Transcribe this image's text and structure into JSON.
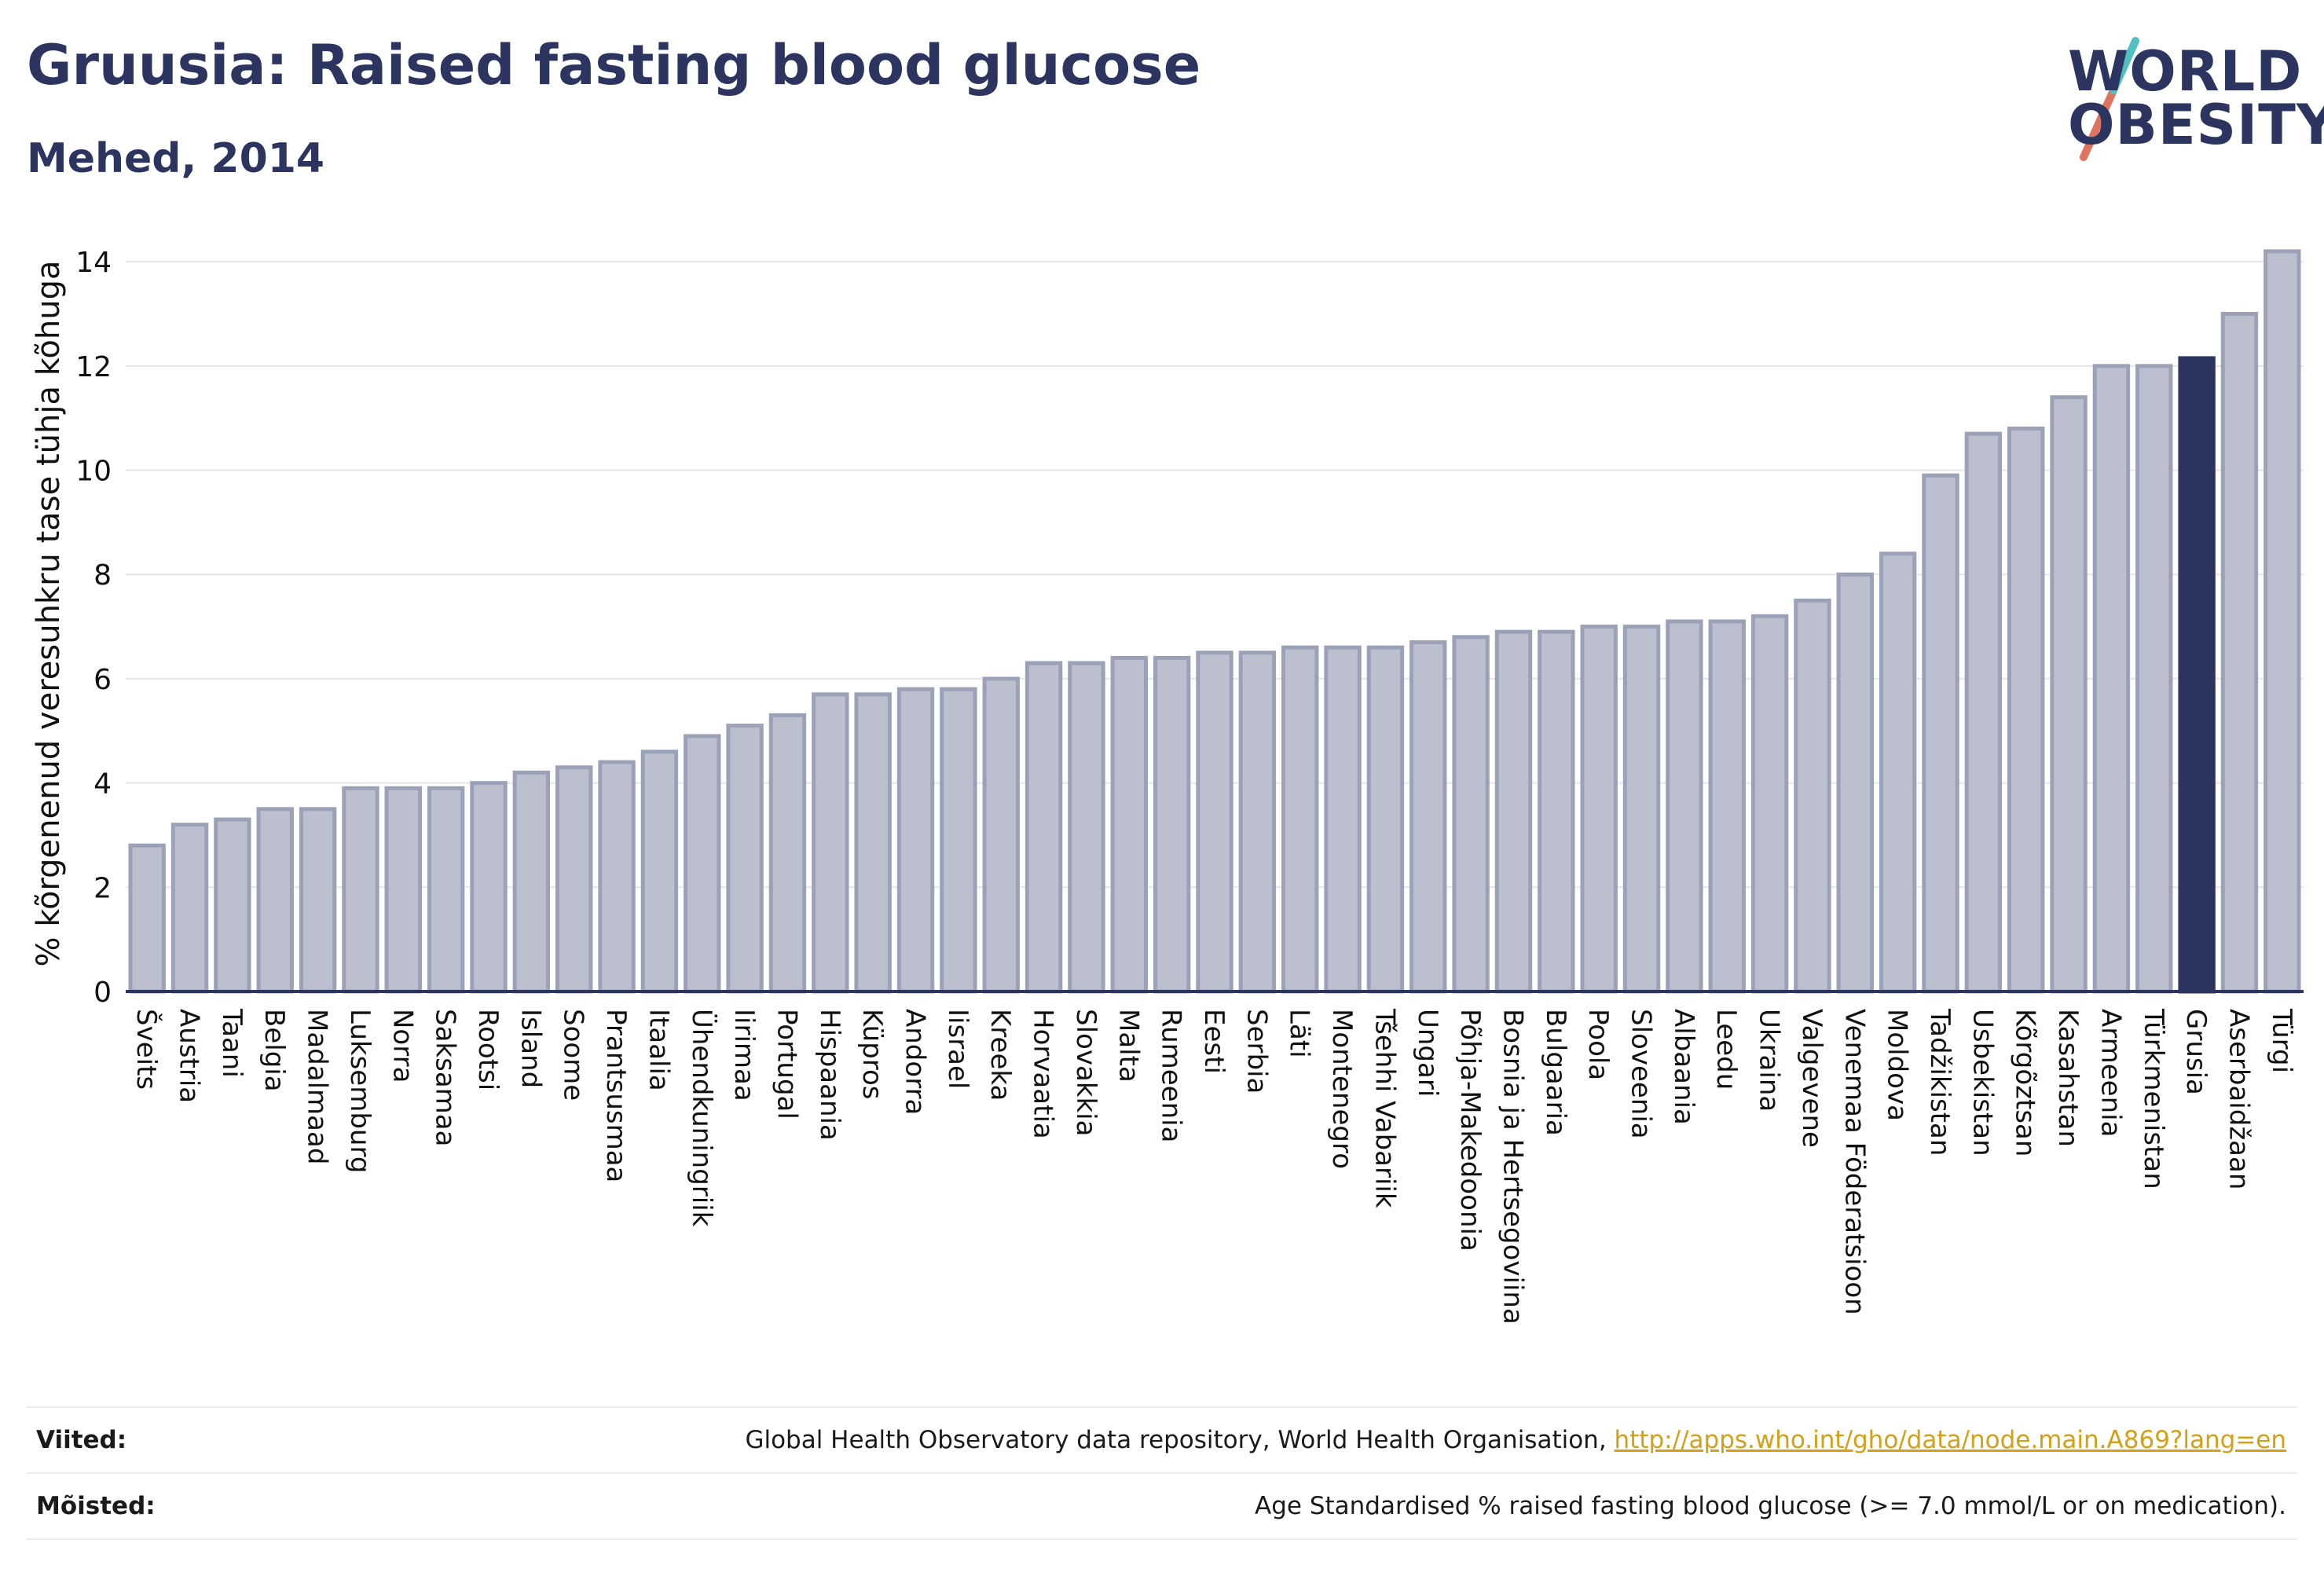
{
  "header": {
    "title": "Gruusia: Raised fasting blood glucose",
    "subtitle": "Mehed, 2014"
  },
  "logo": {
    "line1": "WORLD",
    "line2": "OBESITY",
    "text_color": "#2b3560",
    "slash_colors": [
      "#4fbfbf",
      "#e0735e"
    ]
  },
  "chart_data": {
    "type": "bar",
    "ylabel": "% kõrgenenud veresuhkru tase tühja kõhuga",
    "ylim": [
      0,
      14.5
    ],
    "yticks": [
      0,
      2,
      4,
      6,
      8,
      10,
      12,
      14
    ],
    "grid": true,
    "highlight": "Grusia",
    "colors": {
      "bar": "#bcc0ce",
      "bar_edge": "#9ba2b8",
      "highlight": "#2b3560",
      "axis": "#2b3560",
      "grid": "#e6e6e6"
    },
    "categories": [
      "Šveits",
      "Austria",
      "Taani",
      "Belgia",
      "Madalmaad",
      "Luksemburg",
      "Norra",
      "Saksamaa",
      "Rootsi",
      "Island",
      "Soome",
      "Prantsusmaa",
      "Itaalia",
      "Ühendkuningriik",
      "Iirimaa",
      "Portugal",
      "Hispaania",
      "Küpros",
      "Andorra",
      "Iisrael",
      "Kreeka",
      "Horvaatia",
      "Slovakkia",
      "Malta",
      "Rumeenia",
      "Eesti",
      "Serbia",
      "Läti",
      "Montenegro",
      "Tšehhi Vabariik",
      "Ungari",
      "Põhja-Makedoonia",
      "Bosnia ja Hertsegoviina",
      "Bulgaaria",
      "Poola",
      "Sloveenia",
      "Albaania",
      "Leedu",
      "Ukraina",
      "Valgevene",
      "Venemaa Föderatsioon",
      "Moldova",
      "Tadžikistan",
      "Usbekistan",
      "Kõrgõztsan",
      "Kasahstan",
      "Armeenia",
      "Türkmenistan",
      "Grusia",
      "Aserbaidžaan",
      "Türgi"
    ],
    "values": [
      2.8,
      3.2,
      3.3,
      3.5,
      3.5,
      3.9,
      3.9,
      3.9,
      4.0,
      4.2,
      4.3,
      4.4,
      4.6,
      4.9,
      5.1,
      5.3,
      5.7,
      5.7,
      5.8,
      5.8,
      6.0,
      6.3,
      6.3,
      6.4,
      6.4,
      6.5,
      6.5,
      6.6,
      6.6,
      6.6,
      6.7,
      6.8,
      6.9,
      6.9,
      7.0,
      7.0,
      7.1,
      7.1,
      7.2,
      7.5,
      8.0,
      8.4,
      9.9,
      10.7,
      10.8,
      11.4,
      12.0,
      12.0,
      12.15,
      13.0,
      14.2
    ]
  },
  "footer": {
    "sources_label": "Viited:",
    "sources_text": "Global Health Observatory data repository, World Health Organisation, ",
    "sources_link": "http://apps.who.int/gho/data/node.main.A869?lang=en",
    "definitions_label": "Mõisted:",
    "definitions_text": "Age Standardised % raised fasting blood glucose (>= 7.0 mmol/L or on medication)."
  }
}
